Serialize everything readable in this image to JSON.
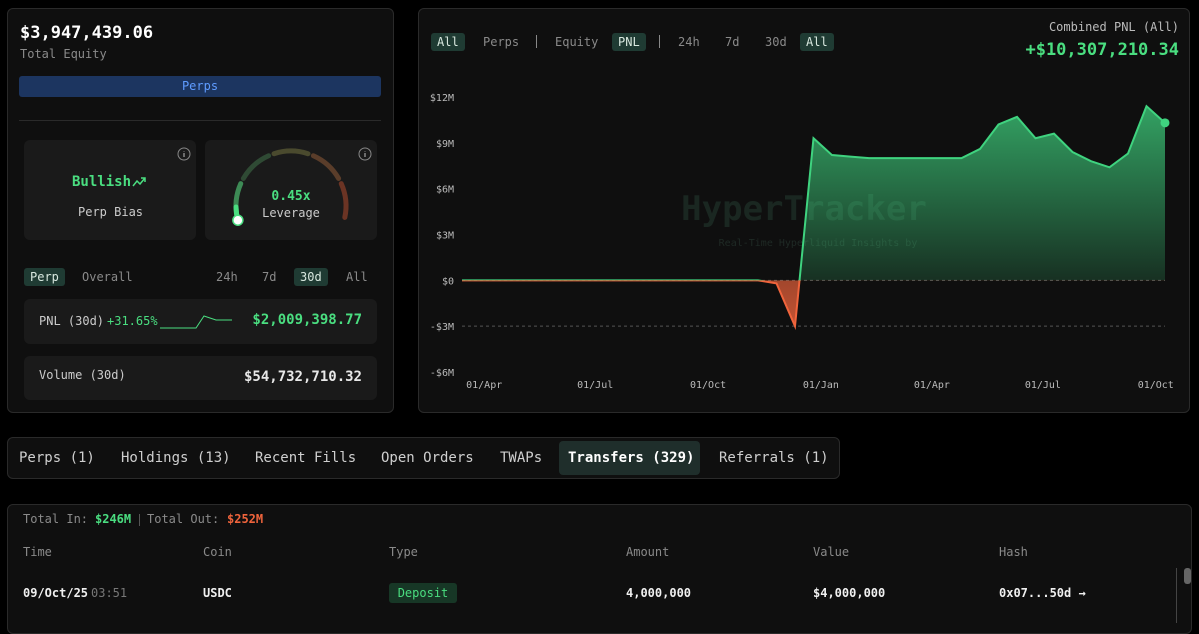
{
  "account": {
    "total_equity": "$3,947,439.06",
    "total_equity_label": "Total Equity",
    "mode_button": "Perps"
  },
  "bias": {
    "value": "Bullish",
    "label": "Perp Bias"
  },
  "leverage": {
    "value": "0.45x",
    "label": "Leverage"
  },
  "stats_tabs": {
    "scope": [
      "Perp",
      "Overall"
    ],
    "periods": [
      "24h",
      "7d",
      "30d",
      "All"
    ]
  },
  "pnl_30d": {
    "label": "PNL (30d)",
    "change": "+31.65%",
    "value": "$2,009,398.77"
  },
  "volume_30d": {
    "label": "Volume (30d)",
    "value": "$54,732,710.32"
  },
  "chart_filters": [
    "All",
    "Perps",
    "Equity",
    "PNL",
    "24h",
    "7d",
    "30d",
    "All"
  ],
  "combined_pnl": {
    "label": "Combined PNL (All)",
    "value": "+$10,307,210.34"
  },
  "chart_data": {
    "type": "line",
    "watermark": "HyperTracker",
    "watermark_sub": "Real-Time Hyperliquid Insights by",
    "x": [
      0,
      1,
      2,
      3,
      4,
      5,
      6,
      7,
      8,
      9,
      10,
      11,
      12,
      13,
      14,
      15,
      16,
      17,
      18,
      19,
      20,
      21,
      22,
      23,
      24,
      25,
      26,
      27,
      28,
      29,
      30,
      31,
      32,
      33,
      34,
      35,
      36,
      37,
      38
    ],
    "series": [
      {
        "name": "PNL",
        "color": "#3fd37f",
        "negative_color": "#f0643c",
        "values": [
          0,
          0,
          0,
          0,
          0,
          0,
          0,
          0,
          0,
          0,
          0,
          0,
          0,
          0,
          0,
          0,
          0,
          -200000,
          -3000000,
          9300000,
          8200000,
          8100000,
          8000000,
          8000000,
          8000000,
          8000000,
          8000000,
          8000000,
          8600000,
          10200000,
          10700000,
          9300000,
          9600000,
          8400000,
          7800000,
          7400000,
          8300000,
          11400000,
          10307210.34
        ]
      }
    ],
    "xlim": [
      0,
      38
    ],
    "xticks": [
      {
        "value": 1.2,
        "label": "01/Apr"
      },
      {
        "value": 7.2,
        "label": "01/Jul"
      },
      {
        "value": 13.3,
        "label": "01/Oct"
      },
      {
        "value": 19.4,
        "label": "01/Jan"
      },
      {
        "value": 25.4,
        "label": "01/Apr"
      },
      {
        "value": 31.4,
        "label": "01/Jul"
      },
      {
        "value": 37.5,
        "label": "01/Oct"
      }
    ],
    "ylim": [
      -6000000,
      12000000
    ],
    "yticks": [
      {
        "value": 12000000,
        "label": "$12M"
      },
      {
        "value": 9000000,
        "label": "$9M"
      },
      {
        "value": 6000000,
        "label": "$6M"
      },
      {
        "value": 3000000,
        "label": "$3M"
      },
      {
        "value": 0,
        "label": "$0"
      },
      {
        "value": -3000000,
        "label": "-$3M"
      },
      {
        "value": -6000000,
        "label": "-$6M"
      }
    ],
    "reference_lines": [
      0,
      -3000000
    ]
  },
  "tabs": [
    "Perps (1)",
    "Holdings (13)",
    "Recent Fills",
    "Open Orders",
    "TWAPs",
    "Transfers (329)",
    "Referrals (1)"
  ],
  "transfers": {
    "total_in_label": "Total In:",
    "total_in": "$246M",
    "total_out_label": "Total Out:",
    "total_out": "$252M",
    "columns": [
      "Time",
      "Coin",
      "Type",
      "Amount",
      "Value",
      "Hash"
    ],
    "rows": [
      [
        "09/Oct/25",
        "03:51",
        "USDC",
        "Deposit",
        "4,000,000",
        "$4,000,000",
        "0x07...50d →"
      ]
    ]
  }
}
